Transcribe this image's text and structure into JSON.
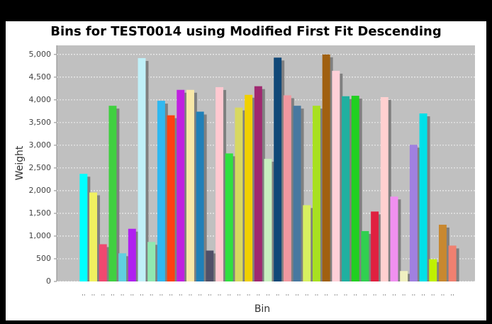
{
  "chart_data": {
    "type": "bar",
    "title": "Bins for TEST0014 using Modified First Fit Descending",
    "x_label": "Bin",
    "y_label": "Weight",
    "categories": [
      "..",
      "..",
      "..",
      "..",
      "..",
      "..",
      "..",
      "..",
      "..",
      "..",
      "..",
      "..",
      "..",
      "..",
      "..",
      "..",
      "..",
      "..",
      "..",
      "..",
      "..",
      "..",
      "..",
      "..",
      "..",
      "..",
      "..",
      "..",
      "..",
      "..",
      "..",
      "..",
      "..",
      "..",
      "..",
      "..",
      "..",
      "..",
      ".."
    ],
    "values": [
      2370,
      1960,
      820,
      3870,
      620,
      1160,
      4920,
      870,
      3980,
      3660,
      4220,
      4220,
      3740,
      680,
      4280,
      2820,
      3830,
      4110,
      4300,
      2700,
      4930,
      4100,
      3870,
      1680,
      3870,
      5000,
      4640,
      4080,
      4090,
      1110,
      1540,
      4060,
      1870,
      230,
      3010,
      3700,
      490,
      1250,
      790
    ],
    "colors": [
      "#00ffff",
      "#f0f060",
      "#f04870",
      "#40d040",
      "#60d0e0",
      "#b020f0",
      "#c0f0f8",
      "#90e8b0",
      "#30b8f0",
      "#ff4010",
      "#c020e0",
      "#f8e8a8",
      "#2080b8",
      "#505068",
      "#ffc8d0",
      "#30e040",
      "#d8d860",
      "#f0d000",
      "#a02870",
      "#c8f0c0",
      "#104878",
      "#f098a0",
      "#4878a0",
      "#d8f060",
      "#a8e020",
      "#a06010",
      "#ffd0d8",
      "#20b0a0",
      "#20d020",
      "#30d050",
      "#e02040",
      "#ffd0d0",
      "#f090f0",
      "#f0f0c0",
      "#a080e0",
      "#00e0e8",
      "#c0f000",
      "#c88830",
      "#f08070"
    ],
    "ylim": [
      0,
      5200
    ],
    "yticks": [
      0,
      500,
      {
        "value": 1000,
        "label": "1,000"
      },
      {
        "value": 1500,
        "label": "1,500"
      },
      {
        "value": 2000,
        "label": "2,000"
      },
      {
        "value": 2500,
        "label": "2,500"
      },
      {
        "value": 3000,
        "label": "3,000"
      },
      {
        "value": 3500,
        "label": "3,500"
      },
      {
        "value": 4000,
        "label": "4,000"
      },
      {
        "value": 4500,
        "label": "4,500"
      },
      {
        "value": 5000,
        "label": "5,000"
      }
    ],
    "grid": true
  }
}
